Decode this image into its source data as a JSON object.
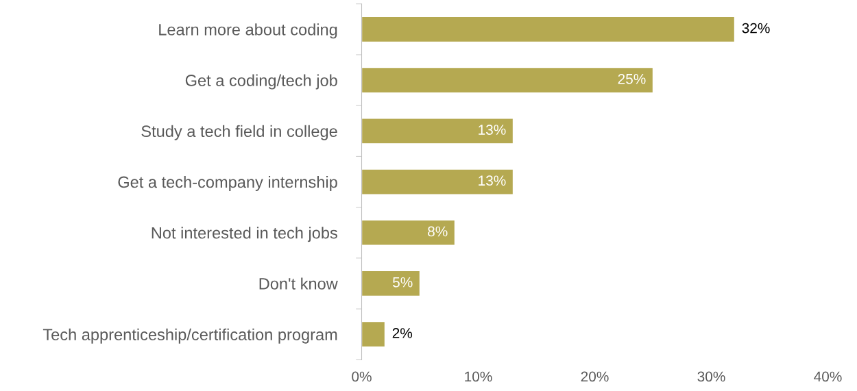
{
  "chart_data": {
    "type": "bar",
    "orientation": "horizontal",
    "categories": [
      "Learn more about coding",
      "Get a coding/tech job",
      "Study a tech field in college",
      "Get a tech-company internship",
      "Not interested in tech jobs",
      "Don't know",
      "Tech apprenticeship/certification program"
    ],
    "values": [
      32,
      25,
      13,
      13,
      8,
      5,
      2
    ],
    "value_labels": [
      "32%",
      "25%",
      "13%",
      "13%",
      "8%",
      "5%",
      "2%"
    ],
    "color": "#b5a951",
    "xlim": [
      0,
      40
    ],
    "xticks": [
      {
        "value": 0,
        "label": "0%"
      },
      {
        "value": 10,
        "label": "10%"
      },
      {
        "value": 20,
        "label": "20%"
      },
      {
        "value": 30,
        "label": "30%"
      },
      {
        "value": 40,
        "label": "40%"
      }
    ],
    "grid": false,
    "legend": false
  }
}
